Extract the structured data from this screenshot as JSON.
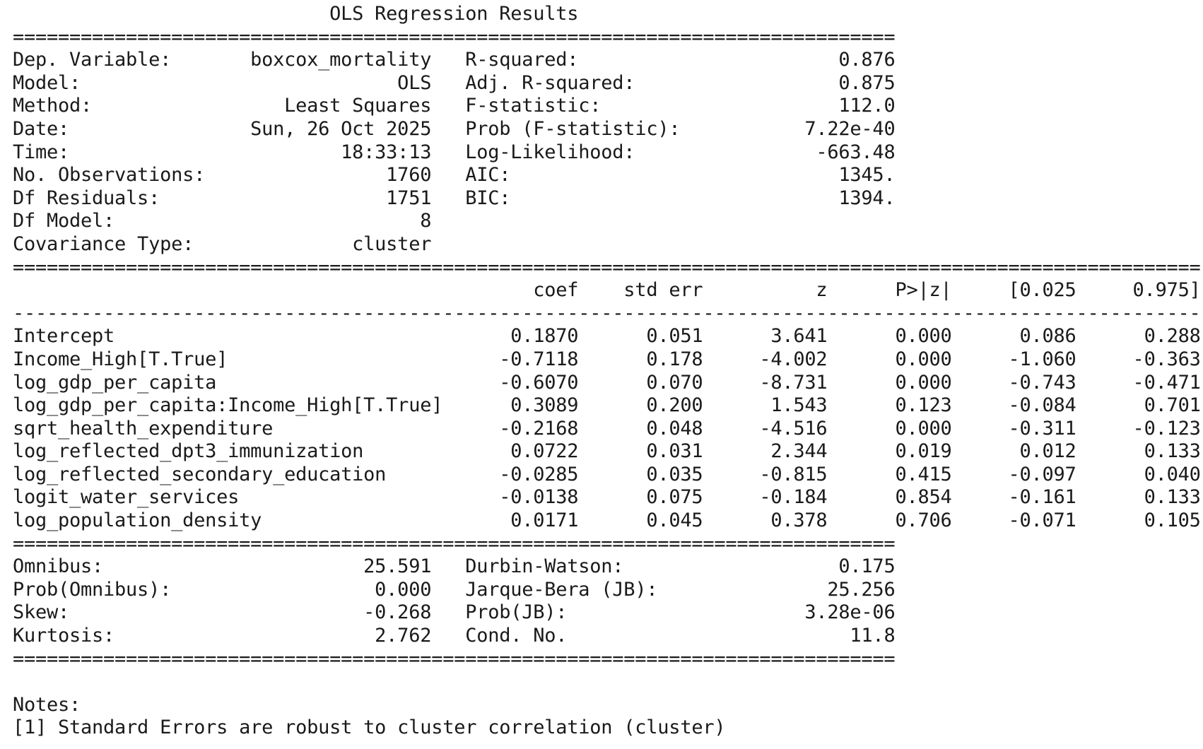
{
  "title": "OLS Regression Results",
  "top_stats": {
    "left": [
      {
        "label": "Dep. Variable:",
        "value": "boxcox_mortality"
      },
      {
        "label": "Model:",
        "value": "OLS"
      },
      {
        "label": "Method:",
        "value": "Least Squares"
      },
      {
        "label": "Date:",
        "value": "Sun, 26 Oct 2025"
      },
      {
        "label": "Time:",
        "value": "18:33:13"
      },
      {
        "label": "No. Observations:",
        "value": "1760"
      },
      {
        "label": "Df Residuals:",
        "value": "1751"
      },
      {
        "label": "Df Model:",
        "value": "8"
      },
      {
        "label": "Covariance Type:",
        "value": "cluster"
      }
    ],
    "right": [
      {
        "label": "R-squared:",
        "value": "0.876"
      },
      {
        "label": "Adj. R-squared:",
        "value": "0.875"
      },
      {
        "label": "F-statistic:",
        "value": "112.0"
      },
      {
        "label": "Prob (F-statistic):",
        "value": "7.22e-40"
      },
      {
        "label": "Log-Likelihood:",
        "value": "-663.48"
      },
      {
        "label": "AIC:",
        "value": "1345."
      },
      {
        "label": "BIC:",
        "value": "1394."
      }
    ]
  },
  "coef_table": {
    "headers": [
      "coef",
      "std err",
      "z",
      "P>|z|",
      "[0.025",
      "0.975]"
    ],
    "rows": [
      {
        "name": "Intercept",
        "values": [
          "0.1870",
          "0.051",
          "3.641",
          "0.000",
          "0.086",
          "0.288"
        ]
      },
      {
        "name": "Income_High[T.True]",
        "values": [
          "-0.7118",
          "0.178",
          "-4.002",
          "0.000",
          "-1.060",
          "-0.363"
        ]
      },
      {
        "name": "log_gdp_per_capita",
        "values": [
          "-0.6070",
          "0.070",
          "-8.731",
          "0.000",
          "-0.743",
          "-0.471"
        ]
      },
      {
        "name": "log_gdp_per_capita:Income_High[T.True]",
        "values": [
          "0.3089",
          "0.200",
          "1.543",
          "0.123",
          "-0.084",
          "0.701"
        ]
      },
      {
        "name": "sqrt_health_expenditure",
        "values": [
          "-0.2168",
          "0.048",
          "-4.516",
          "0.000",
          "-0.311",
          "-0.123"
        ]
      },
      {
        "name": "log_reflected_dpt3_immunization",
        "values": [
          "0.0722",
          "0.031",
          "2.344",
          "0.019",
          "0.012",
          "0.133"
        ]
      },
      {
        "name": "log_reflected_secondary_education",
        "values": [
          "-0.0285",
          "0.035",
          "-0.815",
          "0.415",
          "-0.097",
          "0.040"
        ]
      },
      {
        "name": "logit_water_services",
        "values": [
          "-0.0138",
          "0.075",
          "-0.184",
          "0.854",
          "-0.161",
          "0.133"
        ]
      },
      {
        "name": "log_population_density",
        "values": [
          "0.0171",
          "0.045",
          "0.378",
          "0.706",
          "-0.071",
          "0.105"
        ]
      }
    ]
  },
  "bottom_stats": {
    "left": [
      {
        "label": "Omnibus:",
        "value": "25.591"
      },
      {
        "label": "Prob(Omnibus):",
        "value": "0.000"
      },
      {
        "label": "Skew:",
        "value": "-0.268"
      },
      {
        "label": "Kurtosis:",
        "value": "2.762"
      }
    ],
    "right": [
      {
        "label": "Durbin-Watson:",
        "value": "0.175"
      },
      {
        "label": "Jarque-Bera (JB):",
        "value": "25.256"
      },
      {
        "label": "Prob(JB):",
        "value": "3.28e-06"
      },
      {
        "label": "Cond. No.",
        "value": "11.8"
      }
    ]
  },
  "notes": {
    "heading": "Notes:",
    "items": [
      "[1] Standard Errors are robust to cluster correlation (cluster)"
    ]
  }
}
